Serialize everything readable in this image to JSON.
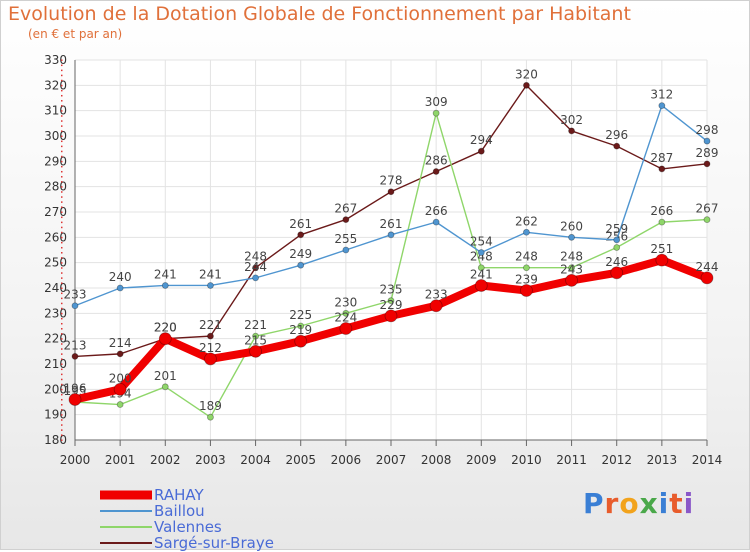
{
  "header": {
    "title": "Evolution de la Dotation Globale de Fonctionnement par Habitant",
    "subtitle": "(en € et par an)"
  },
  "logo": {
    "text": "Proxiti",
    "colors": [
      "#3a7fd5",
      "#e85c2c",
      "#f2a31c",
      "#4aa84a",
      "#3a7fd5",
      "#e85c2c",
      "#8a58c8"
    ]
  },
  "chart_data": {
    "type": "line",
    "x": [
      2000,
      2001,
      2002,
      2003,
      2004,
      2005,
      2006,
      2007,
      2008,
      2009,
      2010,
      2011,
      2012,
      2013,
      2014
    ],
    "ylim": [
      180,
      330
    ],
    "yticks": [
      180,
      190,
      200,
      210,
      220,
      230,
      240,
      250,
      260,
      270,
      280,
      290,
      300,
      310,
      320,
      330
    ],
    "grid": true,
    "legend_position": "bottom-left",
    "series": [
      {
        "name": "Sargé-sur-Braye",
        "color": "#6b1a1a",
        "values": [
          213,
          214,
          220,
          221,
          248,
          261,
          267,
          278,
          286,
          294,
          320,
          302,
          296,
          287,
          289
        ]
      },
      {
        "name": "Valennes",
        "color": "#8fd66a",
        "values": [
          195,
          194,
          201,
          189,
          221,
          225,
          230,
          235,
          309,
          248,
          248,
          248,
          256,
          266,
          267
        ]
      },
      {
        "name": "Baillou",
        "color": "#4f95d0",
        "values": [
          233,
          240,
          241,
          241,
          244,
          249,
          255,
          261,
          266,
          254,
          262,
          260,
          259,
          312,
          298
        ]
      },
      {
        "name": "RAHAY",
        "color": "#f00000",
        "values": [
          196,
          200,
          220,
          212,
          215,
          219,
          224,
          229,
          233,
          241,
          239,
          243,
          246,
          251,
          244
        ]
      }
    ]
  }
}
